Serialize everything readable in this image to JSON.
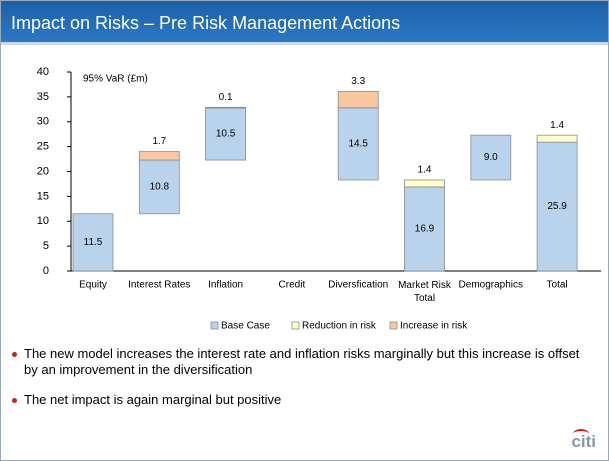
{
  "title": "Impact on Risks – Pre Risk Management Actions",
  "chart_data": {
    "type": "waterfall",
    "y_label": "95% VaR (£m)",
    "categories": [
      "Equity",
      "Interest Rates",
      "Inflation",
      "Credit",
      "Diversfication",
      "Market Risk Total",
      "Demographics",
      "Total"
    ],
    "starts": [
      0,
      11.5,
      22.3,
      null,
      18.3,
      0,
      18.3,
      0
    ],
    "series": [
      {
        "name": "Base Case",
        "color": "#b9d3ec",
        "values": [
          11.5,
          10.8,
          10.5,
          null,
          14.5,
          16.9,
          9.0,
          25.9
        ],
        "value_labels": [
          "11.5",
          "10.8",
          "10.5",
          null,
          "14.5",
          "16.9",
          "9.0",
          "25.9"
        ]
      },
      {
        "name": "Reduction in risk",
        "color": "#ffffcc",
        "values": [
          null,
          null,
          null,
          null,
          null,
          1.4,
          null,
          1.4
        ]
      },
      {
        "name": "Increase in risk",
        "color": "#f8c8a0",
        "values": [
          null,
          1.7,
          0.1,
          null,
          3.3,
          null,
          null,
          null
        ]
      }
    ],
    "ylim": [
      0,
      40
    ],
    "yticks": [
      0,
      5,
      10,
      15,
      20,
      25,
      30,
      35,
      40
    ],
    "legend": "bottom"
  },
  "bullets": [
    "The new model increases the interest rate and inflation risks marginally but this increase is offset by an improvement in the diversification",
    "The net impact is again marginal but positive"
  ],
  "logo": "citi"
}
